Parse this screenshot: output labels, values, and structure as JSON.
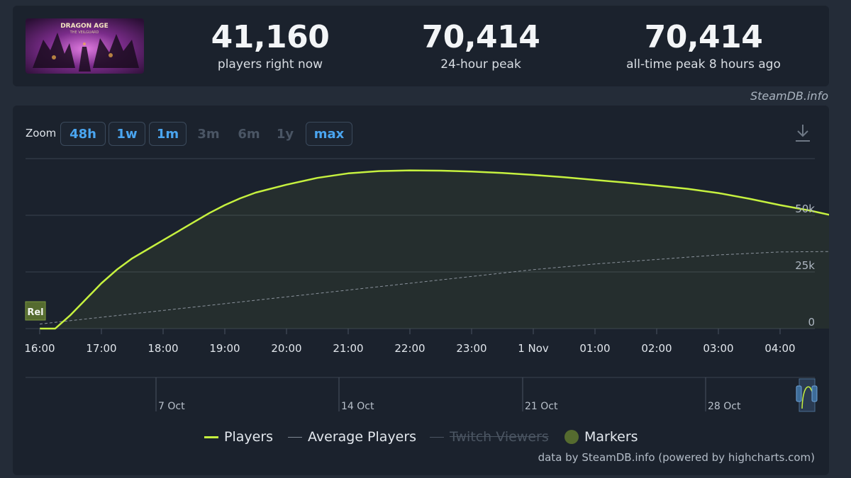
{
  "stats": [
    {
      "value": "41,160",
      "label": "players right now"
    },
    {
      "value": "70,414",
      "label": "24-hour peak"
    },
    {
      "value": "70,414",
      "label": "all-time peak 8 hours ago"
    }
  ],
  "game_thumb": {
    "title": "DRAGON AGE",
    "subtitle": "THE VEILGUARD"
  },
  "credit_top": "SteamDB.info",
  "zoom": {
    "label": "Zoom",
    "buttons": [
      {
        "label": "48h",
        "enabled": true
      },
      {
        "label": "1w",
        "enabled": true
      },
      {
        "label": "1m",
        "enabled": true
      },
      {
        "label": "3m",
        "enabled": false
      },
      {
        "label": "6m",
        "enabled": false
      },
      {
        "label": "1y",
        "enabled": false
      },
      {
        "label": "max",
        "enabled": true,
        "active": true
      }
    ]
  },
  "chart_data": {
    "type": "line",
    "x": [
      "16:00",
      "17:00",
      "18:00",
      "19:00",
      "20:00",
      "21:00",
      "22:00",
      "23:00",
      "1 Nov",
      "01:00",
      "02:00",
      "03:00",
      "04:00"
    ],
    "yticks": [
      "0",
      "25k",
      "50k"
    ],
    "ylim": [
      0,
      75000
    ],
    "series": [
      {
        "name": "Players",
        "color": "#c6f13f",
        "points": [
          [
            0,
            0
          ],
          [
            0.25,
            0
          ],
          [
            0.5,
            6000
          ],
          [
            0.75,
            13000
          ],
          [
            1.0,
            20000
          ],
          [
            1.25,
            26000
          ],
          [
            1.5,
            31000
          ],
          [
            1.75,
            35000
          ],
          [
            2.0,
            39000
          ],
          [
            2.25,
            43000
          ],
          [
            2.5,
            47000
          ],
          [
            2.75,
            51000
          ],
          [
            3.0,
            54500
          ],
          [
            3.25,
            57500
          ],
          [
            3.5,
            60000
          ],
          [
            4.0,
            63500
          ],
          [
            4.5,
            66500
          ],
          [
            5.0,
            68500
          ],
          [
            5.5,
            69500
          ],
          [
            6.0,
            69800
          ],
          [
            6.5,
            69700
          ],
          [
            7.0,
            69300
          ],
          [
            7.5,
            68700
          ],
          [
            8.0,
            67800
          ],
          [
            8.5,
            66800
          ],
          [
            9.0,
            65600
          ],
          [
            9.5,
            64400
          ],
          [
            10.0,
            63100
          ],
          [
            10.5,
            61700
          ],
          [
            11.0,
            59800
          ],
          [
            11.5,
            57300
          ],
          [
            12.0,
            54500
          ],
          [
            12.5,
            52000
          ],
          [
            12.8,
            50200
          ]
        ]
      },
      {
        "name": "Average Players",
        "color": "#8a929c",
        "points": [
          [
            0,
            2000
          ],
          [
            1,
            5000
          ],
          [
            2,
            8000
          ],
          [
            3,
            11000
          ],
          [
            4,
            14000
          ],
          [
            5,
            17000
          ],
          [
            6,
            20000
          ],
          [
            7,
            23000
          ],
          [
            8,
            26000
          ],
          [
            9,
            28500
          ],
          [
            10,
            30500
          ],
          [
            11,
            32500
          ],
          [
            12,
            33800
          ],
          [
            12.8,
            34000
          ]
        ]
      },
      {
        "name": "Twitch Viewers",
        "color": "#5c6570",
        "hidden": true,
        "points": []
      }
    ],
    "marker": {
      "label": "Rel",
      "x": 0
    },
    "navigator_labels": [
      "7 Oct",
      "14 Oct",
      "21 Oct",
      "28 Oct"
    ],
    "legend": [
      "Players",
      "Average Players",
      "Twitch Viewers",
      "Markers"
    ]
  },
  "credit_bottom": "data by SteamDB.info (powered by highcharts.com)",
  "colors": {
    "accent": "#4aa5f0",
    "players": "#c6f13f",
    "marker": "#556b2f"
  }
}
